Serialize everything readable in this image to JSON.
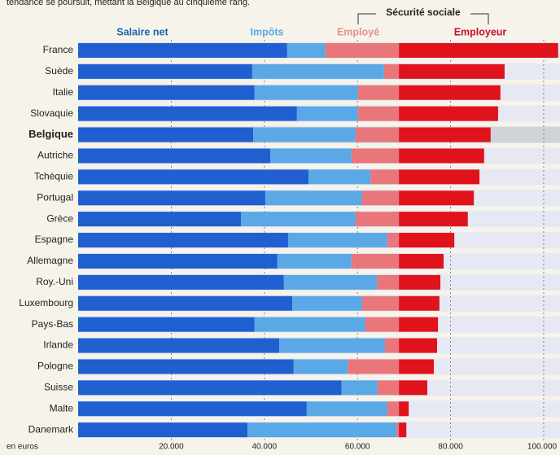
{
  "chart_data": {
    "type": "stacked-bar-horizontal",
    "subtitle": "tendance se poursuit, mettant la Belgique au cinquième rang.",
    "group_label": "Sécurité sociale",
    "x_label": "en euros",
    "categories": [
      "France",
      "Suède",
      "Italie",
      "Slovaquie",
      "Belgique",
      "Autriche",
      "Tchéquie",
      "Portugal",
      "Grèce",
      "Espagne",
      "Allemagne",
      "Roy.-Uni",
      "Luxembourg",
      "Pays-Bas",
      "Irlande",
      "Pologne",
      "Suisse",
      "Malte",
      "Danemark"
    ],
    "highlight_index": 4,
    "series": [
      {
        "name": "Salaire net",
        "color": "#1f5fd0",
        "label_color": "#1a66b0",
        "values": [
          44900,
          37400,
          37900,
          47000,
          37600,
          41300,
          49500,
          40200,
          35000,
          45100,
          42800,
          44200,
          46000,
          37900,
          43200,
          46300,
          56600,
          49100,
          36400
        ]
      },
      {
        "name": "Impôts",
        "color": "#5aa8e6",
        "label_color": "#5aaae0",
        "values": [
          8200,
          28300,
          22200,
          13100,
          22000,
          17400,
          13300,
          20800,
          24600,
          21300,
          15900,
          20000,
          15000,
          23800,
          22700,
          11700,
          7700,
          17300,
          32000
        ]
      },
      {
        "name": "Employé",
        "color": "#e8767a",
        "label_color": "#e89090",
        "values": [
          15800,
          3200,
          8800,
          8800,
          9300,
          10200,
          6100,
          7900,
          9300,
          2500,
          10200,
          4700,
          7900,
          7200,
          3000,
          10900,
          4600,
          2500,
          500
        ]
      },
      {
        "name": "Employeur",
        "color": "#e0121c",
        "label_color": "#c8102e",
        "values": [
          34200,
          22700,
          21800,
          21300,
          19700,
          18300,
          17300,
          16100,
          14800,
          11900,
          9600,
          8900,
          8700,
          8400,
          8200,
          7500,
          6100,
          2100,
          1600
        ]
      }
    ],
    "xlim": [
      0,
      103500
    ],
    "xticks": [
      {
        "value": 20000,
        "label": "20.000"
      },
      {
        "value": 40000,
        "label": "40.000"
      },
      {
        "value": 60000,
        "label": "60.000"
      },
      {
        "value": 80000,
        "label": "80.000"
      },
      {
        "value": 100000,
        "label": "100.000"
      }
    ],
    "grid": true
  }
}
